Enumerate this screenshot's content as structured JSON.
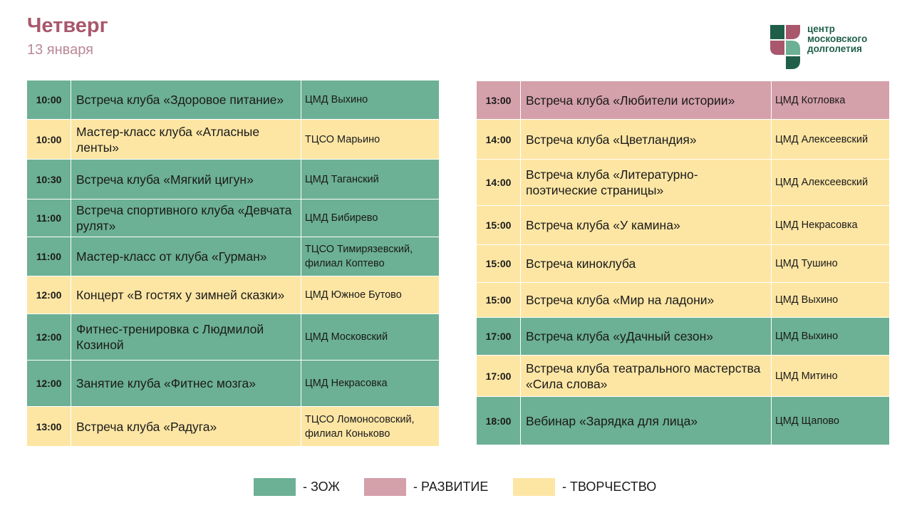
{
  "header": {
    "day": "Четверг",
    "date": "13 января"
  },
  "logo": {
    "lines": [
      "центр",
      "московского",
      "долголетия"
    ],
    "colors": {
      "dark_green": "#1f5f4a",
      "rose": "#a8576c",
      "mint": "#6cb095"
    }
  },
  "category_colors": {
    "zoj": "#6cb095",
    "razv": "#d4a0aa",
    "tvor": "#fde6a4"
  },
  "left_rows": [
    {
      "time": "10:00",
      "event": "Встреча клуба «Здоровое питание»",
      "place": "ЦМД Выхино",
      "category": "zoj"
    },
    {
      "time": "10:00",
      "event": "Мастер-класс клуба «Атласные ленты»",
      "place": "ТЦСО Марьино",
      "category": "tvor"
    },
    {
      "time": "10:30",
      "event": "Встреча клуба «Мягкий цигун»",
      "place": "ЦМД Таганский",
      "category": "zoj"
    },
    {
      "time": "11:00",
      "event": "Встреча спортивного клуба «Девчата рулят»",
      "place": "ЦМД Бибирево",
      "category": "zoj"
    },
    {
      "time": "11:00",
      "event": "Мастер-класс от клуба «Гурман»",
      "place": "ТЦСО Тимирязевский, филиал Коптево",
      "category": "zoj"
    },
    {
      "time": "12:00",
      "event": "Концерт «В гостях у зимней сказки»",
      "place": "ЦМД Южное Бутово",
      "category": "tvor"
    },
    {
      "time": "12:00",
      "event": "Фитнес-тренировка с Людмилой Козиной",
      "place": "ЦМД Московский",
      "category": "zoj"
    },
    {
      "time": "12:00",
      "event": "Занятие клуба «Фитнес мозга»",
      "place": "ЦМД Некрасовка",
      "category": "zoj"
    },
    {
      "time": "13:00",
      "event": "Встреча клуба «Радуга»",
      "place": "ТЦСО Ломоносовский, филиал Коньково",
      "category": "tvor"
    }
  ],
  "right_rows": [
    {
      "time": "13:00",
      "event": "Встреча клуба «Любители истории»",
      "place": "ЦМД Котловка",
      "category": "razv"
    },
    {
      "time": "14:00",
      "event": "Встреча клуба «Цветландия»",
      "place": "ЦМД Алексеевский",
      "category": "tvor"
    },
    {
      "time": "14:00",
      "event": "Встреча клуба «Литературно-поэтические страницы»",
      "place": "ЦМД Алексеевский",
      "category": "tvor"
    },
    {
      "time": "15:00",
      "event": "Встреча клуба «У камина»",
      "place": "ЦМД Некрасовка",
      "category": "tvor"
    },
    {
      "time": "15:00",
      "event": "Встреча киноклуба",
      "place": "ЦМД Тушино",
      "category": "tvor"
    },
    {
      "time": "15:00",
      "event": "Встреча клуба «Мир на ладони»",
      "place": "ЦМД Выхино",
      "category": "tvor"
    },
    {
      "time": "17:00",
      "event": "Встреча клуба «уДачный сезон»",
      "place": "ЦМД Выхино",
      "category": "zoj"
    },
    {
      "time": "17:00",
      "event": "Встреча клуба театрального мастерства «Сила слова»",
      "place": "ЦМД Митино",
      "category": "tvor"
    },
    {
      "time": "18:00",
      "event": "Вебинар «Зарядка для лица»",
      "place": "ЦМД Щапово",
      "category": "zoj"
    }
  ],
  "legend": [
    {
      "label": "- ЗОЖ",
      "category": "zoj"
    },
    {
      "label": "- РАЗВИТИЕ",
      "category": "razv"
    },
    {
      "label": "- ТВОРЧЕСТВО",
      "category": "tvor"
    }
  ]
}
